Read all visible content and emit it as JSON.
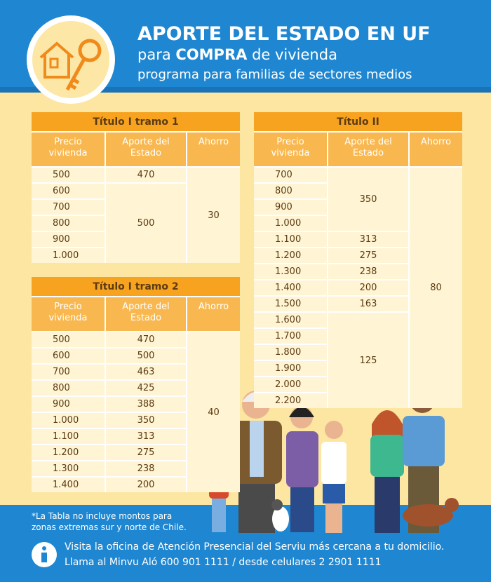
{
  "header": {
    "title": "APORTE DEL ESTADO EN UF",
    "subtitle_pre": "para",
    "subtitle_bold": "COMPRA",
    "subtitle_post": "de vivienda",
    "tagline": "programa para familias de sectores medios"
  },
  "tables": [
    {
      "title": "Título I tramo 1",
      "headers": [
        "Precio vivienda",
        "Aporte del Estado",
        "Ahorro"
      ],
      "ahorro": "30",
      "groups": [
        {
          "aporte": "470",
          "precios": [
            "500"
          ]
        },
        {
          "aporte": "500",
          "precios": [
            "600",
            "700",
            "800",
            "900",
            "1.000"
          ]
        }
      ]
    },
    {
      "title": "Título I tramo 2",
      "headers": [
        "Precio vivienda",
        "Aporte del Estado",
        "Ahorro"
      ],
      "ahorro": "40",
      "groups": [
        {
          "aporte": "470",
          "precios": [
            "500"
          ]
        },
        {
          "aporte": "500",
          "precios": [
            "600"
          ]
        },
        {
          "aporte": "463",
          "precios": [
            "700"
          ]
        },
        {
          "aporte": "425",
          "precios": [
            "800"
          ]
        },
        {
          "aporte": "388",
          "precios": [
            "900"
          ]
        },
        {
          "aporte": "350",
          "precios": [
            "1.000"
          ]
        },
        {
          "aporte": "313",
          "precios": [
            "1.100"
          ]
        },
        {
          "aporte": "275",
          "precios": [
            "1.200"
          ]
        },
        {
          "aporte": "238",
          "precios": [
            "1.300"
          ]
        },
        {
          "aporte": "200",
          "precios": [
            "1.400"
          ]
        }
      ]
    },
    {
      "title": "Título II",
      "headers": [
        "Precio vivienda",
        "Aporte del Estado",
        "Ahorro"
      ],
      "ahorro": "80",
      "groups": [
        {
          "aporte": "350",
          "precios": [
            "700",
            "800",
            "900",
            "1.000"
          ]
        },
        {
          "aporte": "313",
          "precios": [
            "1.100"
          ]
        },
        {
          "aporte": "275",
          "precios": [
            "1.200"
          ]
        },
        {
          "aporte": "238",
          "precios": [
            "1.300"
          ]
        },
        {
          "aporte": "200",
          "precios": [
            "1.400"
          ]
        },
        {
          "aporte": "163",
          "precios": [
            "1.500"
          ]
        },
        {
          "aporte": "125",
          "precios": [
            "1.600",
            "1.700",
            "1.800",
            "1.900",
            "2.000",
            "2.200"
          ]
        }
      ]
    }
  ],
  "footer": {
    "note": "*La Tabla no incluye montos para zonas extremas sur y norte de Chile.",
    "info_line1": "Visita la oficina de Atención Presencial del Serviu más cercana a tu domicilio.",
    "info_line2": "Llama al Minvu Aló 600 901 1111 / desde celulares 2 2901 1111"
  }
}
